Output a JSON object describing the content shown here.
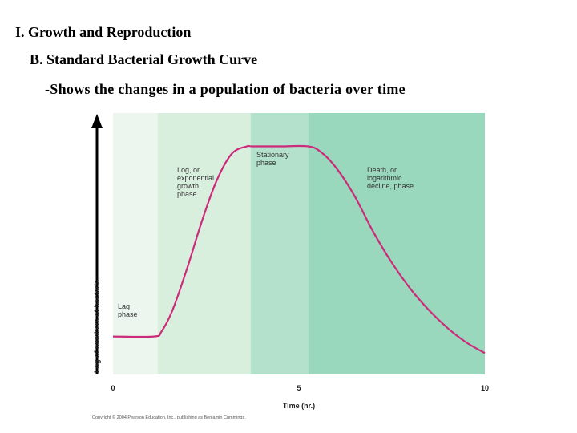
{
  "slide": {
    "heading1": "I. Growth and Reproduction",
    "heading2": "B. Standard Bacterial Growth Curve",
    "heading3": "-Shows the changes in a population of bacteria over time"
  },
  "chart_data": {
    "type": "line",
    "title": "",
    "xlabel": "Time (hr.)",
    "ylabel": "Log of numbers of bacteria",
    "xlim": [
      0,
      10
    ],
    "x_ticks": [
      0,
      5,
      10
    ],
    "x_tick_labels": [
      "0",
      "5",
      "10"
    ],
    "y_ticks_labeled": false,
    "grid": false,
    "legend": "none",
    "line_color": "#cc2a7a",
    "phases": [
      {
        "name": "Lag phase",
        "lines": [
          "Lag",
          "phase"
        ],
        "x_start": 0,
        "x_end": 1.2,
        "color": "#ecf6ef"
      },
      {
        "name": "Log, or exponential growth, phase",
        "lines": [
          "Log, or",
          "exponential",
          "growth,",
          "phase"
        ],
        "x_start": 1.2,
        "x_end": 3.7,
        "color": "#d9efde"
      },
      {
        "name": "Stationary phase",
        "lines": [
          "Stationary",
          "phase"
        ],
        "x_start": 3.7,
        "x_end": 5.25,
        "color": "#b4e1cb"
      },
      {
        "name": "Death, or logarithmic decline, phase",
        "lines": [
          "Death, or",
          "logarithmic",
          "decline, phase"
        ],
        "x_start": 5.25,
        "x_end": 10,
        "color": "#99d8bd"
      }
    ],
    "series": [
      {
        "x": [
          0,
          1.1,
          1.3,
          1.6,
          2.0,
          2.4,
          2.8,
          3.2,
          3.6,
          3.75,
          4.5,
          5.25,
          5.6,
          6.0,
          6.5,
          7.0,
          7.5,
          8.0,
          8.5,
          9.0,
          9.5,
          10
        ],
        "y": [
          1.6,
          1.6,
          1.8,
          2.7,
          4.5,
          6.5,
          8.2,
          9.3,
          9.6,
          9.6,
          9.6,
          9.6,
          9.35,
          8.7,
          7.5,
          6.0,
          4.7,
          3.6,
          2.7,
          1.95,
          1.35,
          0.9
        ]
      }
    ],
    "ylim": [
      0,
      11
    ]
  },
  "copyright": "Copyright © 2004 Pearson Education, Inc., publishing as Benjamin Cummings."
}
